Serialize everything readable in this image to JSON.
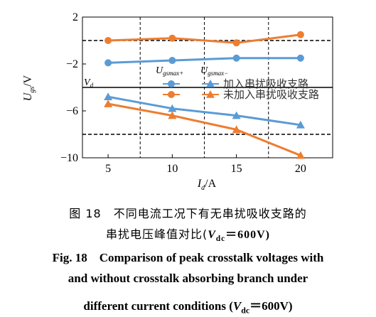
{
  "chart_data": {
    "type": "line",
    "xlabel": "I",
    "xlabel_sub": "d",
    "xlabel_unit": "/A",
    "ylabel": "U",
    "ylabel_sub": "gs",
    "ylabel_unit": "/V",
    "x": [
      5,
      10,
      15,
      20
    ],
    "xlim": [
      3,
      22.5
    ],
    "ylim": [
      -10,
      2
    ],
    "xticks": [
      5,
      10,
      15,
      20
    ],
    "yticks": [
      2,
      -2,
      -6,
      -10
    ],
    "series": [
      {
        "group": "加入串扰吸收支路",
        "kind": "Ugsmax+",
        "color": "#5b9bd5",
        "marker": "circle",
        "values": [
          -1.9,
          -1.7,
          -1.5,
          -1.5
        ]
      },
      {
        "group": "未加入串扰吸收支路",
        "kind": "Ugsmax+",
        "color": "#ed7d31",
        "marker": "circle",
        "values": [
          0.0,
          0.2,
          -0.2,
          0.5
        ]
      },
      {
        "group": "加入串扰吸收支路",
        "kind": "Ugsmax-",
        "color": "#5b9bd5",
        "marker": "triangle",
        "values": [
          -4.8,
          -5.8,
          -6.4,
          -7.2
        ]
      },
      {
        "group": "未加入串扰吸收支路",
        "kind": "Ugsmax-",
        "color": "#ed7d31",
        "marker": "triangle",
        "values": [
          -5.4,
          -6.4,
          -7.6,
          -9.8
        ]
      }
    ],
    "legend": {
      "header_plus": "U",
      "header_plus_sub": "gsmax+",
      "header_minus": "U",
      "header_minus_sub": "gsmax−",
      "rows": [
        "加入串扰吸收支路",
        "未加入串扰吸收支路"
      ],
      "placement": "center-right"
    },
    "reference_lines": [
      {
        "y": -4,
        "style": "solid",
        "label": "V",
        "label_sub": "d"
      },
      {
        "y": 0,
        "style": "dashed"
      },
      {
        "y": -8,
        "style": "dashed"
      }
    ],
    "vertical_dashed": [
      7.5,
      12.5,
      17.5
    ]
  },
  "caption": {
    "cn_line1": "图 18　不同电流工况下有无串扰吸收支路的",
    "cn_line2_pre": "串扰电压峰值对比(",
    "cn_line2_var": "V",
    "cn_line2_sub": "dc",
    "cn_line2_post": "＝600V)",
    "en_line1": "Fig. 18　Comparison of peak crosstalk voltages with",
    "en_line2": "and without crosstalk absorbing branch under",
    "en_line3_pre": "different current conditions (",
    "en_line3_var": "V",
    "en_line3_sub": "dc",
    "en_line3_post": "＝600V)"
  }
}
